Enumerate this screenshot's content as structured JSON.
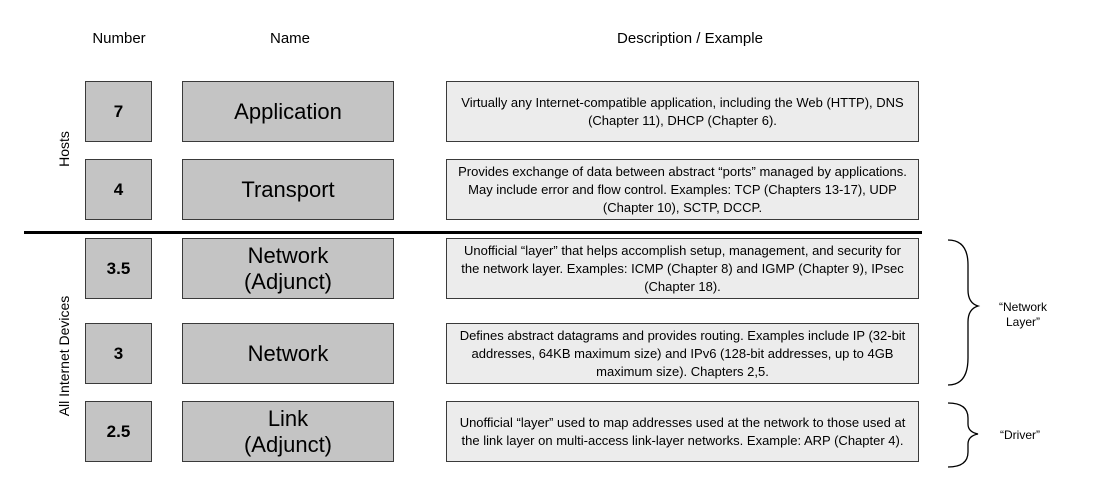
{
  "headers": {
    "number": "Number",
    "name": "Name",
    "description": "Description / Example"
  },
  "sides": {
    "hosts": "Hosts",
    "all_devices": "All Internet Devices"
  },
  "layers": [
    {
      "number": "7",
      "name": "Application",
      "description": "Virtually any Internet-compatible application, including the Web (HTTP), DNS (Chapter 11), DHCP (Chapter 6)."
    },
    {
      "number": "4",
      "name": "Transport",
      "description": "Provides exchange of data between abstract “ports” managed by applications. May include error and flow control. Examples: TCP (Chapters 13-17), UDP (Chapter 10), SCTP, DCCP."
    },
    {
      "number": "3.5",
      "name": "Network (Adjunct)",
      "description": "Unofficial “layer” that helps accomplish setup, management, and security for the network layer. Examples: ICMP (Chapter 8) and IGMP (Chapter 9), IPsec (Chapter 18)."
    },
    {
      "number": "3",
      "name": "Network",
      "description": "Defines abstract datagrams and provides routing. Examples include IP (32-bit addresses, 64KB maximum size) and IPv6 (128-bit addresses, up to 4GB maximum size). Chapters 2,5."
    },
    {
      "number": "2.5",
      "name": "Link (Adjunct)",
      "description": "Unofficial “layer” used to map addresses used at the network to those used at the link layer on multi-access link-layer networks. Example: ARP (Chapter 4)."
    }
  ],
  "brackets": {
    "network_layer": "“Network Layer”",
    "driver": "“Driver”"
  }
}
